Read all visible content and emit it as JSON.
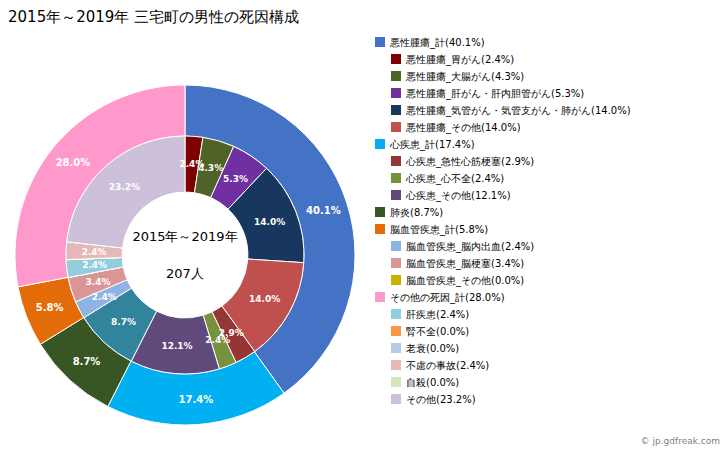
{
  "chart_data": {
    "type": "donut",
    "title": "2015年～2019年 三宅町の男性の死因構成",
    "annotations": [
      "2015年～2019年",
      "207人"
    ],
    "source": "© jp.gdfreak.com",
    "data_labels": true,
    "series": [
      {
        "values": [
          40.1,
          17.4,
          8.7,
          5.8,
          28.0
        ],
        "colors": [
          "#4472C4",
          "#00B0F0",
          "#375623",
          "#E36C09",
          "#FF99CC"
        ],
        "value_labels": [
          "40.1%",
          "17.4%",
          "8.7%",
          "5.8%",
          "28.0%"
        ]
      },
      {
        "values": [
          2.4,
          4.3,
          5.3,
          14.0,
          14.0,
          2.9,
          2.4,
          12.1,
          8.7,
          2.4,
          3.4,
          0.001,
          2.4,
          0.001,
          0.001,
          2.4,
          0.001,
          23.2
        ],
        "colors": [
          "#7F0000",
          "#4F6228",
          "#7030A0",
          "#17375E",
          "#C0504D",
          "#963634",
          "#76923C",
          "#604A7B",
          "#31849B",
          "#8DB4E2",
          "#DA9694",
          "#C6B200",
          "#92CDDC",
          "#F79646",
          "#B8CCE4",
          "#E6B9B8",
          "#D8E4BC",
          "#CCC0DA"
        ],
        "value_labels": [
          "2.4%",
          "4.3%",
          "5.3%",
          "14.0%",
          "14.0%",
          "2.9%",
          "2.4%",
          "12.1%",
          "8.7%",
          "2.4%",
          "3.4%",
          null,
          "2.4%",
          null,
          null,
          "2.4%",
          null,
          "23.2%"
        ]
      }
    ],
    "legend_entries": [
      {
        "name": "悪性腫瘍_計(40.1%)",
        "color": "#4472C4",
        "children": [
          {
            "name": "悪性腫瘍_胃がん(2.4%)",
            "color": "#7F0000"
          },
          {
            "name": "悪性腫瘍_大腸がん(4.3%)",
            "color": "#4F6228"
          },
          {
            "name": "悪性腫瘍_肝がん・肝内胆管がん(5.3%)",
            "color": "#7030A0"
          },
          {
            "name": "悪性腫瘍_気管がん・気管支がん・肺がん(14.0%)",
            "color": "#17375E"
          },
          {
            "name": "悪性腫瘍_その他(14.0%)",
            "color": "#C0504D"
          }
        ]
      },
      {
        "name": "心疾患_計(17.4%)",
        "color": "#00B0F0",
        "children": [
          {
            "name": "心疾患_急性心筋梗塞(2.9%)",
            "color": "#963634"
          },
          {
            "name": "心疾患_心不全(2.4%)",
            "color": "#76923C"
          },
          {
            "name": "心疾患_その他(12.1%)",
            "color": "#604A7B"
          }
        ]
      },
      {
        "name": "肺炎(8.7%)",
        "color": "#375623",
        "children": []
      },
      {
        "name": "脳血管疾患_計(5.8%)",
        "color": "#E36C09",
        "children": [
          {
            "name": "脳血管疾患_脳内出血(2.4%)",
            "color": "#8DB4E2"
          },
          {
            "name": "脳血管疾患_脳梗塞(3.4%)",
            "color": "#DA9694"
          },
          {
            "name": "脳血管疾患_その他(0.0%)",
            "color": "#C6B200"
          }
        ]
      },
      {
        "name": "その他の死因_計(28.0%)",
        "color": "#FF99CC",
        "children": [
          {
            "name": "肝疾患(2.4%)",
            "color": "#92CDDC"
          },
          {
            "name": "腎不全(0.0%)",
            "color": "#F79646"
          },
          {
            "name": "老衰(0.0%)",
            "color": "#B8CCE4"
          },
          {
            "name": "不慮の事故(2.4%)",
            "color": "#E6B9B8"
          },
          {
            "name": "自殺(0.0%)",
            "color": "#D8E4BC"
          },
          {
            "name": "その他(23.2%)",
            "color": "#CCC0DA"
          }
        ]
      }
    ]
  }
}
